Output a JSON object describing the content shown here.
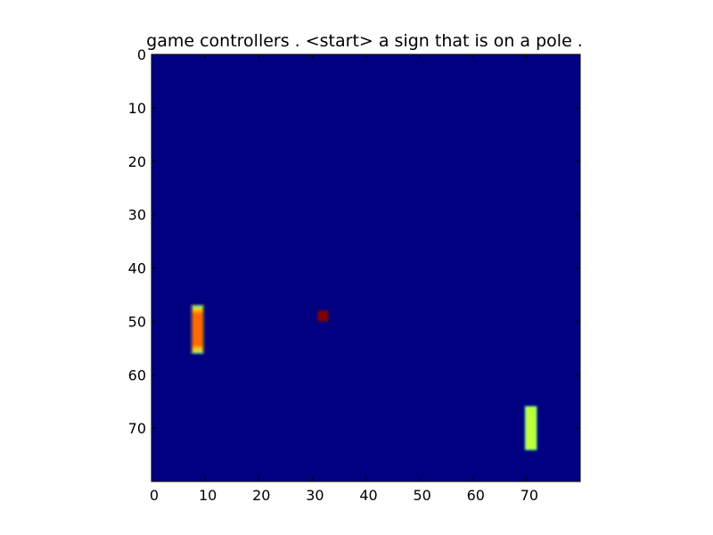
{
  "title": "game controllers . <start> a sign that is on a pole .",
  "colors": {
    "background": "#000080",
    "left_paddle_core": "#ff6a00",
    "left_paddle_mid": "#ffb000",
    "left_paddle_edge": "#33ffcc",
    "right_paddle_core": "#bfff3a",
    "right_paddle_edge": "#7fff7a",
    "ball": "#7f0000",
    "axis": "#000000"
  },
  "chart_data": {
    "type": "heatmap",
    "title": "game controllers . <start> a sign that is on a pole .",
    "xlim": [
      0,
      80
    ],
    "ylim": [
      80,
      0
    ],
    "x_ticks": [
      "0",
      "10",
      "20",
      "30",
      "40",
      "50",
      "60",
      "70"
    ],
    "y_ticks": [
      "0",
      "10",
      "20",
      "30",
      "40",
      "50",
      "60",
      "70"
    ],
    "colormap": "jet",
    "objects": [
      {
        "name": "left paddle",
        "x": [
          7.6,
          9.6
        ],
        "y": [
          47,
          56
        ],
        "value": 0.8
      },
      {
        "name": "ball",
        "x": [
          31,
          33
        ],
        "y": [
          48,
          50
        ],
        "value": 1.0
      },
      {
        "name": "right paddle",
        "x": [
          69.8,
          71.8
        ],
        "y": [
          66,
          74
        ],
        "value": 0.6
      }
    ]
  }
}
